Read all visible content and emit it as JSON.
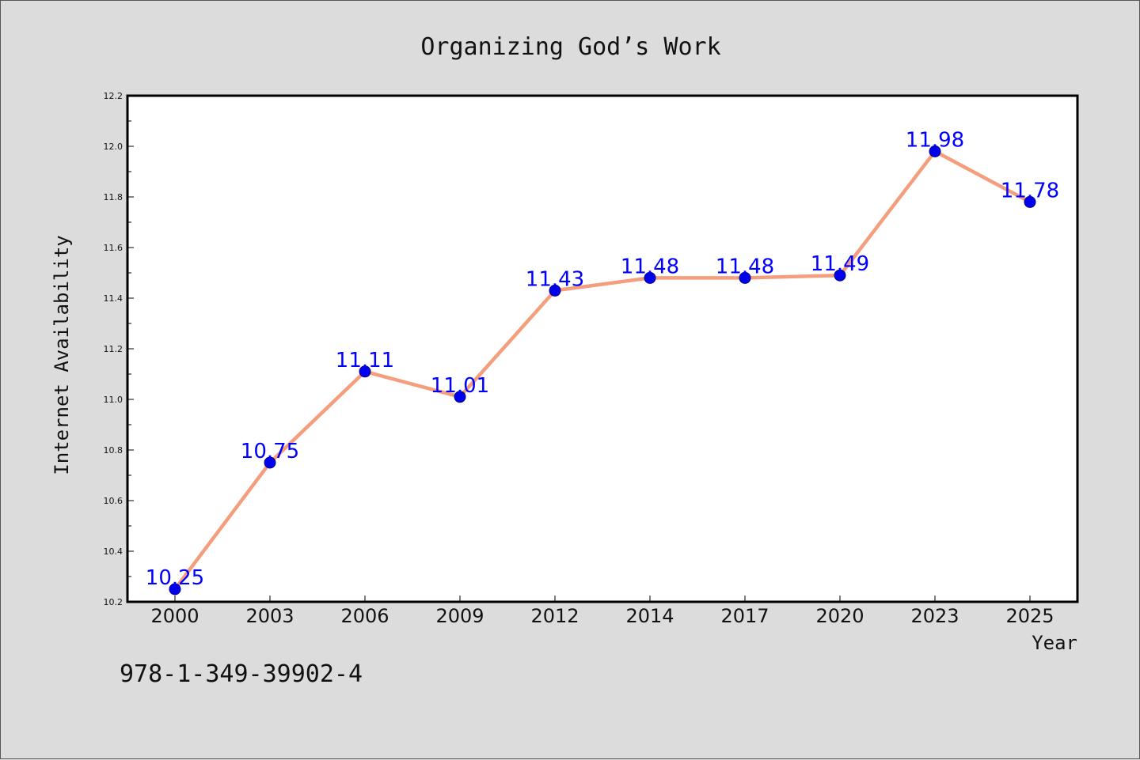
{
  "chart_data": {
    "type": "line",
    "title": "Organizing God’s Work",
    "xlabel": "Year",
    "ylabel": "Internet Availability",
    "categories": [
      "2000",
      "2003",
      "2006",
      "2009",
      "2012",
      "2014",
      "2017",
      "2020",
      "2023",
      "2025"
    ],
    "values": [
      10.25,
      10.75,
      11.11,
      11.01,
      11.43,
      11.48,
      11.48,
      11.49,
      11.98,
      11.78
    ],
    "data_labels": [
      "10.25",
      "10.75",
      "11.11",
      "11.01",
      "11.43",
      "11.48",
      "11.48",
      "11.49",
      "11.98",
      "11.78"
    ],
    "ylim": [
      10.2,
      12.2
    ],
    "y_ticks": [
      "10.2",
      "10.4",
      "10.6",
      "10.8",
      "11.0",
      "11.2",
      "11.4",
      "11.6",
      "11.8",
      "12.0",
      "12.2"
    ],
    "grid": false,
    "line_color": "#f59e7e",
    "marker_color": "#0000ee",
    "label_color": "#0000ff"
  },
  "footer": {
    "isbn": "978-1-349-39902-4"
  }
}
